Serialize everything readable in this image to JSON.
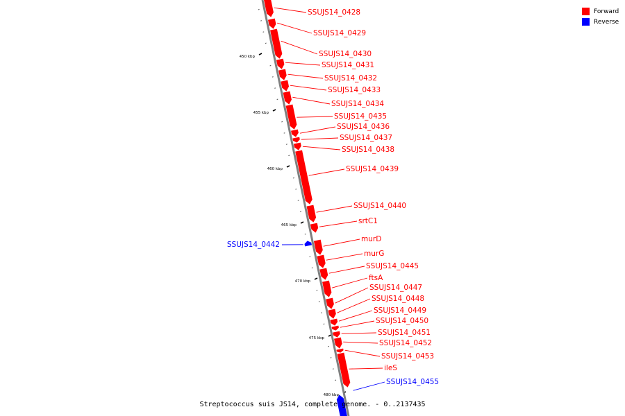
{
  "legend": [
    {
      "label": "Forward",
      "color": "#ff0000"
    },
    {
      "label": "Reverse",
      "color": "#0000ff"
    }
  ],
  "caption": "Streptococcus suis JS14, complete genome. - 0..2137435",
  "colors": {
    "forward": "#ff0000",
    "reverse": "#0000ff",
    "backbone": "#808080"
  },
  "scale": {
    "major_ticks_kbp": [
      450,
      455,
      460,
      465,
      470,
      475,
      480
    ],
    "labels": [
      "450 kbp",
      "455 kbp",
      "460 kbp",
      "465 kbp",
      "470 kbp",
      "475 kbp",
      "480 kbp"
    ]
  },
  "genes": [
    {
      "name": "SSUJS14_0428",
      "strand": "forward"
    },
    {
      "name": "SSUJS14_0429",
      "strand": "forward"
    },
    {
      "name": "SSUJS14_0430",
      "strand": "forward"
    },
    {
      "name": "SSUJS14_0431",
      "strand": "forward"
    },
    {
      "name": "SSUJS14_0432",
      "strand": "forward"
    },
    {
      "name": "SSUJS14_0433",
      "strand": "forward"
    },
    {
      "name": "SSUJS14_0434",
      "strand": "forward"
    },
    {
      "name": "SSUJS14_0435",
      "strand": "forward"
    },
    {
      "name": "SSUJS14_0436",
      "strand": "forward"
    },
    {
      "name": "SSUJS14_0437",
      "strand": "forward"
    },
    {
      "name": "SSUJS14_0438",
      "strand": "forward"
    },
    {
      "name": "SSUJS14_0439",
      "strand": "forward"
    },
    {
      "name": "SSUJS14_0440",
      "strand": "forward"
    },
    {
      "name": "srtC1",
      "strand": "forward"
    },
    {
      "name": "SSUJS14_0442",
      "strand": "reverse"
    },
    {
      "name": "murD",
      "strand": "forward"
    },
    {
      "name": "murG",
      "strand": "forward"
    },
    {
      "name": "SSUJS14_0445",
      "strand": "forward"
    },
    {
      "name": "ftsA",
      "strand": "forward"
    },
    {
      "name": "SSUJS14_0447",
      "strand": "forward"
    },
    {
      "name": "SSUJS14_0448",
      "strand": "forward"
    },
    {
      "name": "SSUJS14_0449",
      "strand": "forward"
    },
    {
      "name": "SSUJS14_0450",
      "strand": "forward"
    },
    {
      "name": "SSUJS14_0451",
      "strand": "forward"
    },
    {
      "name": "SSUJS14_0452",
      "strand": "forward"
    },
    {
      "name": "SSUJS14_0453",
      "strand": "forward"
    },
    {
      "name": "ileS",
      "strand": "forward"
    },
    {
      "name": "SSUJS14_0455",
      "strand": "reverse"
    }
  ]
}
